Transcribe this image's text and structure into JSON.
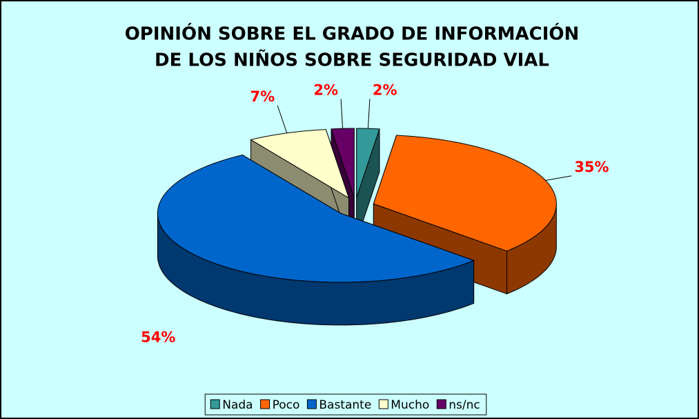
{
  "chart_data": {
    "type": "pie",
    "title": [
      "OPINIÓN SOBRE EL GRADO DE INFORMACIÓN",
      "DE LOS NIÑOS SOBRE SEGURIDAD VIAL"
    ],
    "categories": [
      "Nada",
      "Poco",
      "Bastante",
      "Mucho",
      "ns/nc"
    ],
    "values": [
      2,
      35,
      54,
      7,
      2
    ],
    "value_labels": [
      "2%",
      "35%",
      "54%",
      "7%",
      "2%"
    ],
    "colors": [
      "#339999",
      "#ff6600",
      "#0066cc",
      "#ffffcc",
      "#660066"
    ],
    "legend": "bottom"
  }
}
